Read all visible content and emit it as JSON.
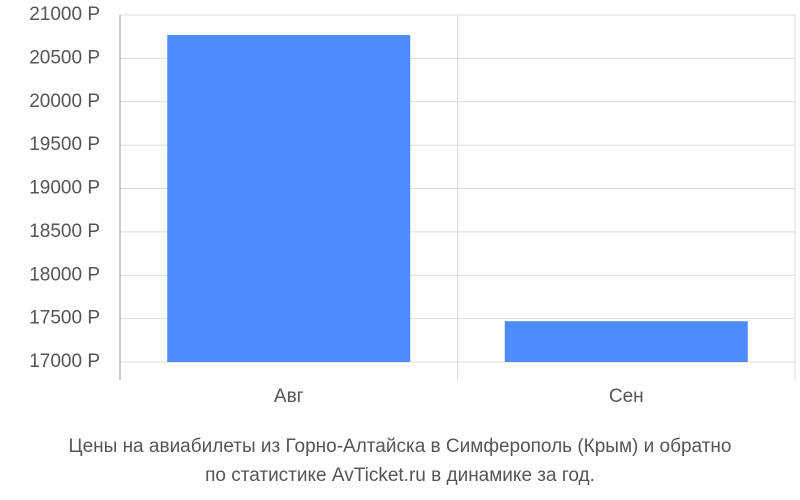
{
  "chart_data": {
    "type": "bar",
    "title": [
      "Цены на авиабилеты из Горно-Алтайска в Симферополь (Крым) и обратно",
      "по статистике AvTicket.ru в динамике за год."
    ],
    "categories": [
      "Авг",
      "Сен"
    ],
    "values": [
      20770,
      17470
    ],
    "color": "#4d8bff",
    "ylim": [
      17000,
      21000
    ],
    "yticks": [
      {
        "value": 17000,
        "label": "17000 Р"
      },
      {
        "value": 17500,
        "label": "17500 Р"
      },
      {
        "value": 18000,
        "label": "18000 Р"
      },
      {
        "value": 18500,
        "label": "18500 Р"
      },
      {
        "value": 19000,
        "label": "19000 Р"
      },
      {
        "value": 19500,
        "label": "19500 Р"
      },
      {
        "value": 20000,
        "label": "20000 Р"
      },
      {
        "value": 20500,
        "label": "20500 Р"
      },
      {
        "value": 21000,
        "label": "21000 Р"
      }
    ],
    "grid": true
  }
}
